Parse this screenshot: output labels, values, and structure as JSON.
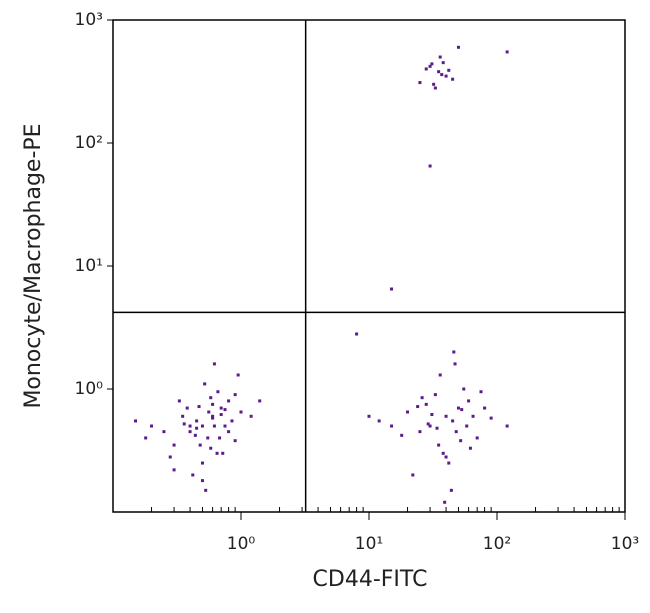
{
  "chart_data": {
    "type": "scatter",
    "xlabel": "CD44-FITC",
    "ylabel": "Monocyte/Macrophage-PE",
    "xscale": "log",
    "yscale": "log",
    "xlim": [
      0.1,
      1000
    ],
    "ylim": [
      0.1,
      1000
    ],
    "xticks": [
      {
        "value": 1,
        "label": "10⁰"
      },
      {
        "value": 10,
        "label": "10¹"
      },
      {
        "value": 100,
        "label": "10²"
      },
      {
        "value": 1000,
        "label": "10³"
      }
    ],
    "yticks": [
      {
        "value": 1,
        "label": "10⁰"
      },
      {
        "value": 10,
        "label": "10¹"
      },
      {
        "value": 100,
        "label": "10²"
      },
      {
        "value": 1000,
        "label": "10³"
      }
    ],
    "xminor_ticks": [
      0.2,
      0.3,
      0.4,
      0.5,
      0.6,
      0.7,
      0.8,
      0.9,
      2,
      3,
      4,
      5,
      6,
      7,
      8,
      9,
      20,
      30,
      40,
      50,
      60,
      70,
      80,
      90,
      200,
      300,
      400,
      500,
      600,
      700,
      800,
      900
    ],
    "gates": {
      "x": 3.2,
      "y": 4.2
    },
    "series": [
      {
        "color": "#5c1a8c",
        "x": [
          0.5,
          0.6,
          0.4,
          0.7,
          0.8,
          0.3,
          0.55,
          0.45,
          0.65,
          0.9,
          0.35,
          0.5,
          0.6,
          0.75,
          0.25,
          1.0,
          0.42,
          0.58,
          0.68,
          0.38,
          0.52,
          0.85,
          0.2,
          1.2,
          0.48,
          0.62,
          0.33,
          0.72,
          0.56,
          0.44,
          0.95,
          0.28,
          0.66,
          0.5,
          0.8,
          0.4,
          0.6,
          0.7,
          0.18,
          1.4,
          0.53,
          0.47,
          0.36,
          0.9,
          0.62,
          0.3,
          0.75,
          0.45,
          0.58,
          0.15,
          40,
          30,
          50,
          25,
          60,
          35,
          45,
          20,
          70,
          15,
          55,
          38,
          28,
          42,
          65,
          33,
          48,
          22,
          80,
          12,
          36,
          52,
          44,
          26,
          58,
          31,
          47,
          18,
          90,
          40,
          34,
          62,
          24,
          46,
          10,
          75,
          39,
          29,
          53,
          120,
          35,
          30,
          40,
          32,
          38,
          28,
          45,
          36,
          33,
          42,
          25,
          50,
          37,
          31,
          120,
          30,
          15,
          8
        ],
        "values": [
          0.5,
          0.6,
          0.45,
          0.7,
          0.8,
          0.35,
          0.4,
          0.55,
          0.3,
          0.9,
          0.6,
          0.25,
          0.75,
          0.5,
          0.45,
          0.65,
          0.2,
          0.85,
          0.4,
          0.7,
          1.1,
          0.55,
          0.5,
          0.6,
          0.35,
          0.5,
          0.8,
          0.3,
          0.65,
          0.42,
          1.3,
          0.28,
          0.95,
          0.18,
          0.45,
          0.5,
          0.58,
          0.62,
          0.4,
          0.8,
          0.15,
          0.72,
          0.52,
          0.38,
          1.6,
          0.22,
          0.68,
          0.48,
          0.33,
          0.55,
          0.6,
          0.5,
          0.7,
          0.45,
          0.8,
          0.35,
          0.55,
          0.65,
          0.4,
          0.5,
          1.0,
          0.3,
          0.75,
          0.25,
          0.6,
          0.9,
          0.45,
          0.2,
          0.7,
          0.55,
          1.3,
          0.38,
          0.15,
          0.85,
          0.5,
          0.62,
          1.6,
          0.42,
          0.58,
          0.28,
          0.48,
          0.33,
          0.72,
          2.0,
          0.6,
          0.95,
          0.12,
          0.52,
          0.68,
          0.5,
          380,
          420,
          350,
          300,
          450,
          400,
          330,
          500,
          280,
          390,
          310,
          600,
          360,
          440,
          550,
          65,
          6.5,
          2.8
        ]
      }
    ]
  }
}
